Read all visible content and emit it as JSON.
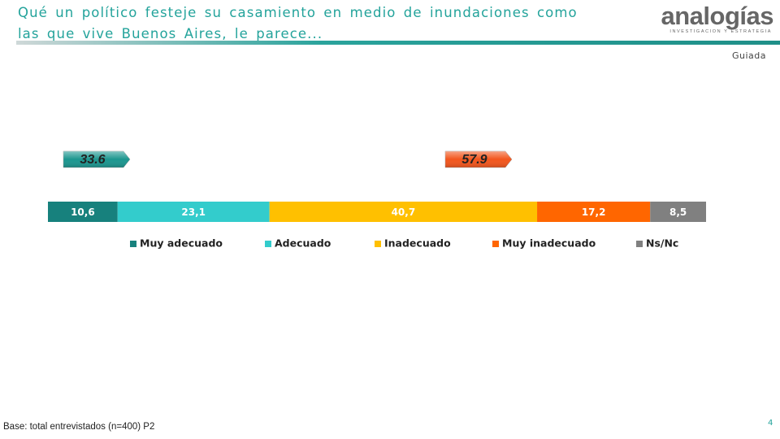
{
  "header": {
    "title": "Qué un político festeje su casamiento en medio de inundaciones como las que vive Buenos Aires, le parece...",
    "logo": "analogías",
    "logo_subtitle": "INVESTIGACION Y ESTRATEGIA",
    "tag": "Guiada"
  },
  "chart_data": {
    "type": "bar",
    "orientation": "horizontal",
    "stacked": true,
    "categories": [
      null
    ],
    "series": [
      {
        "name": "Muy adecuado",
        "color": "#17817d",
        "values": [
          10.6
        ],
        "value_labels": [
          "10,6"
        ]
      },
      {
        "name": "Adecuado",
        "color": "#33cccc",
        "values": [
          23.1
        ],
        "value_labels": [
          "23,1"
        ]
      },
      {
        "name": "Inadecuado",
        "color": "#ffc000",
        "values": [
          40.7
        ],
        "value_labels": [
          "40,7"
        ]
      },
      {
        "name": "Muy inadecuado",
        "color": "#ff6600",
        "values": [
          17.2
        ],
        "value_labels": [
          "17,2"
        ]
      },
      {
        "name": "Ns/Nc",
        "color": "#808080",
        "values": [
          8.5
        ],
        "value_labels": [
          "8,5"
        ]
      }
    ],
    "annotations": [
      {
        "value": 33.6,
        "color": "#1c968f"
      },
      {
        "value": 57.9,
        "color": "#f2561d"
      }
    ]
  },
  "footer": {
    "note": "Base: total entrevistados (n=400) P2",
    "page": "4"
  }
}
